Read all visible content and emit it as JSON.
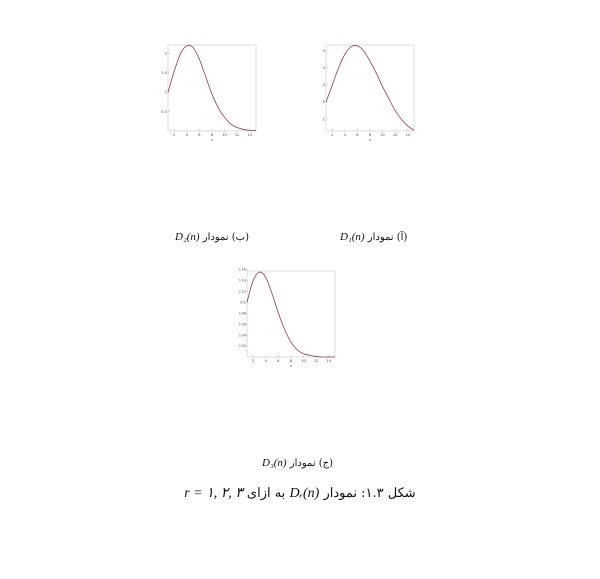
{
  "chart_data": [
    {
      "id": "a",
      "type": "line",
      "xlabel": "x",
      "x": [
        1,
        2,
        3,
        4,
        5,
        6,
        7,
        8,
        9,
        10,
        11,
        12,
        13,
        14,
        15
      ],
      "values": [
        2.0,
        3.0,
        4.0,
        4.8,
        5.25,
        5.3,
        5.0,
        4.4,
        3.7,
        2.9,
        2.2,
        1.5,
        1.0,
        0.6,
        0.35
      ],
      "xlim": [
        1,
        15
      ],
      "ylim": [
        0.3,
        5.35
      ],
      "xticks": [
        2,
        4,
        6,
        8,
        10,
        12,
        14
      ],
      "yticks": [
        1,
        2,
        3,
        4,
        5
      ],
      "grid": false,
      "color": "#8e3a5e"
    },
    {
      "id": "b",
      "type": "line",
      "xlabel": "x",
      "x": [
        1,
        2,
        3,
        4,
        5,
        6,
        7,
        8,
        9,
        10,
        11,
        12,
        13,
        14,
        15
      ],
      "values": [
        1.0,
        1.55,
        2.0,
        2.2,
        2.15,
        1.85,
        1.4,
        0.95,
        0.6,
        0.35,
        0.18,
        0.09,
        0.04,
        0.02,
        0.01
      ],
      "xlim": [
        1,
        15
      ],
      "ylim": [
        0,
        2.22
      ],
      "xticks": [
        2,
        4,
        6,
        8,
        10,
        12,
        14
      ],
      "yticks": [
        0.5,
        1,
        1.5,
        2
      ],
      "grid": false,
      "color": "#8e3a5e"
    },
    {
      "id": "c",
      "type": "line",
      "xlabel": "x",
      "x": [
        1,
        2,
        3,
        4,
        5,
        6,
        7,
        8,
        9,
        10,
        11,
        12,
        13,
        14,
        15
      ],
      "values": [
        0.1,
        0.14,
        0.155,
        0.145,
        0.115,
        0.08,
        0.05,
        0.027,
        0.013,
        0.006,
        0.003,
        0.001,
        0,
        0,
        0
      ],
      "xlim": [
        1,
        15
      ],
      "ylim": [
        0,
        0.157
      ],
      "xticks": [
        2,
        4,
        6,
        8,
        10,
        12,
        14
      ],
      "yticks": [
        0.02,
        0.04,
        0.06,
        0.08,
        0.1,
        0.12,
        0.14,
        0.16
      ],
      "grid": false,
      "color": "#8e3a5e"
    }
  ],
  "captions": {
    "a": {
      "label": "(آ) نمودار",
      "math": "D₁(n)"
    },
    "b": {
      "label": "(ب) نمودار",
      "math": "D₂(n)"
    },
    "c": {
      "label": "(ج) نمودار",
      "math": "D₃(n)"
    }
  },
  "figure": {
    "prefix": "شکل ۱.۳: نمودار",
    "math": "Dᵣ(n)",
    "middle": "به ازای",
    "formula": "r = ۱, ۲, ۳"
  }
}
